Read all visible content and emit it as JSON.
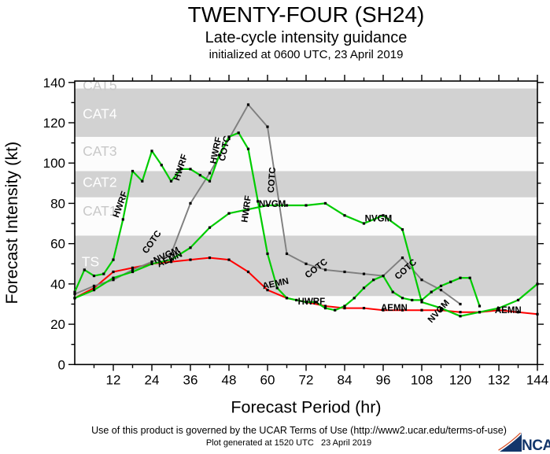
{
  "header": {
    "title": "TWENTY-FOUR (SH24)",
    "subtitle": "Late-cycle intensity guidance",
    "init_line": "initialized at 0600 UTC, 23 April 2019"
  },
  "chart_data": {
    "type": "line",
    "title": "TWENTY-FOUR (SH24)",
    "subtitle": "Late-cycle intensity guidance",
    "xlabel": "Forecast Period (hr)",
    "ylabel": "Forecast Intensity (kt)",
    "xlim": [
      0,
      144
    ],
    "ylim": [
      0,
      140.7
    ],
    "grid": false,
    "xticks_major": [
      12,
      24,
      36,
      48,
      60,
      72,
      84,
      96,
      108,
      120,
      132,
      144
    ],
    "xtick_minor_step": 6,
    "yticks_major": [
      0,
      20,
      40,
      60,
      80,
      100,
      120,
      140
    ],
    "ytick_minor_step": 10,
    "band_gray": "#d2d2d2",
    "band_white": "#fcfcfc",
    "bands": [
      {
        "label": "",
        "from": 0,
        "to": 34,
        "fill": "#fcfcfc",
        "label_color": "",
        "label_t": 0,
        "label_kt": 0
      },
      {
        "label": "TS",
        "from": 34,
        "to": 64,
        "fill": "#d2d2d2",
        "label_color": "#ffffff",
        "label_t": 4.9,
        "label_kt": 51
      },
      {
        "label": "CAT1",
        "from": 64,
        "to": 83,
        "fill": "#fcfcfc",
        "label_color": "#c8c8c8",
        "label_t": 7.8,
        "label_kt": 76.3
      },
      {
        "label": "CAT2",
        "from": 83,
        "to": 96,
        "fill": "#d2d2d2",
        "label_color": "#ffffff",
        "label_t": 7.8,
        "label_kt": 90.5
      },
      {
        "label": "CAT3",
        "from": 96,
        "to": 113,
        "fill": "#fcfcfc",
        "label_color": "#c8c8c8",
        "label_t": 7.8,
        "label_kt": 106
      },
      {
        "label": "CAT4",
        "from": 113,
        "to": 137,
        "fill": "#d2d2d2",
        "label_color": "#ffffff",
        "label_t": 7.8,
        "label_kt": 124.5
      },
      {
        "label": "CAT5",
        "from": 137,
        "to": 140.7,
        "fill": "#fcfcfc",
        "label_color": "#c8c8c8",
        "label_t": 7.8,
        "label_kt": 138.6
      }
    ],
    "marker": {
      "color": "#000000",
      "size": 3.2
    },
    "series": [
      {
        "name": "AEMN",
        "color": "#ff0000",
        "width": 2.0,
        "points": [
          [
            0,
            33
          ],
          [
            6,
            38
          ],
          [
            12,
            46
          ],
          [
            18,
            48
          ],
          [
            24,
            50
          ],
          [
            30,
            51
          ],
          [
            36,
            52
          ],
          [
            42,
            53
          ],
          [
            48,
            52
          ],
          [
            54,
            46
          ],
          [
            60,
            37
          ],
          [
            66,
            33
          ],
          [
            72,
            31
          ],
          [
            78,
            29
          ],
          [
            84,
            28
          ],
          [
            90,
            28
          ],
          [
            96,
            27
          ],
          [
            102,
            27
          ],
          [
            108,
            27
          ],
          [
            114,
            27
          ],
          [
            120,
            26
          ],
          [
            126,
            26
          ],
          [
            132,
            27
          ],
          [
            138,
            26
          ],
          [
            144,
            25
          ]
        ]
      },
      {
        "name": "COTC",
        "color": "#7f7f7f",
        "width": 1.9,
        "points": [
          [
            0,
            35
          ],
          [
            6,
            39
          ],
          [
            12,
            42
          ],
          [
            18,
            47
          ],
          [
            24,
            51
          ],
          [
            30,
            55
          ],
          [
            36,
            80
          ],
          [
            42,
            95
          ],
          [
            48,
            112
          ],
          [
            54,
            129
          ],
          [
            60,
            118
          ],
          [
            66,
            55
          ],
          [
            72,
            50
          ],
          [
            78,
            47
          ],
          [
            84,
            46
          ],
          [
            90,
            45
          ],
          [
            96,
            44
          ],
          [
            102,
            53
          ],
          [
            108,
            42
          ],
          [
            114,
            37
          ],
          [
            120,
            30
          ]
        ]
      },
      {
        "name": "NVGM",
        "color": "#00cc00",
        "width": 2.2,
        "points": [
          [
            0,
            33
          ],
          [
            6,
            37
          ],
          [
            12,
            43
          ],
          [
            18,
            46
          ],
          [
            24,
            50
          ],
          [
            30,
            52
          ],
          [
            36,
            58
          ],
          [
            42,
            68
          ],
          [
            48,
            75
          ],
          [
            54,
            77
          ],
          [
            60,
            79
          ],
          [
            66,
            79
          ],
          [
            72,
            79
          ],
          [
            78,
            80
          ],
          [
            84,
            74
          ],
          [
            90,
            70
          ],
          [
            96,
            74
          ],
          [
            102,
            67
          ],
          [
            108,
            31
          ],
          [
            114,
            28
          ],
          [
            120,
            24
          ],
          [
            126,
            26
          ],
          [
            132,
            28
          ],
          [
            138,
            32
          ],
          [
            144,
            40
          ]
        ]
      },
      {
        "name": "HWRF",
        "color": "#00cc00",
        "width": 2.2,
        "points": [
          [
            0,
            36
          ],
          [
            3,
            47
          ],
          [
            6,
            44
          ],
          [
            9,
            45
          ],
          [
            12,
            52
          ],
          [
            15,
            72
          ],
          [
            18,
            96
          ],
          [
            21,
            91
          ],
          [
            24,
            106
          ],
          [
            27,
            99
          ],
          [
            30,
            91
          ],
          [
            33,
            97
          ],
          [
            36,
            97
          ],
          [
            39,
            94
          ],
          [
            42,
            91
          ],
          [
            45,
            104
          ],
          [
            48,
            113
          ],
          [
            51,
            115
          ],
          [
            54,
            107
          ],
          [
            57,
            81
          ],
          [
            60,
            55
          ],
          [
            63,
            38
          ],
          [
            66,
            33
          ],
          [
            69,
            32
          ],
          [
            72,
            31
          ],
          [
            75,
            31
          ],
          [
            78,
            28
          ],
          [
            81,
            27
          ],
          [
            84,
            29
          ],
          [
            87,
            33
          ],
          [
            90,
            38
          ],
          [
            93,
            42
          ],
          [
            96,
            44
          ],
          [
            99,
            36
          ],
          [
            102,
            33
          ],
          [
            105,
            32
          ],
          [
            108,
            32
          ],
          [
            111,
            36
          ],
          [
            114,
            39
          ],
          [
            117,
            41
          ],
          [
            120,
            43
          ],
          [
            123,
            43
          ],
          [
            126,
            29
          ]
        ]
      }
    ],
    "inline_labels": [
      {
        "text": "HWRF",
        "t": 15,
        "kt": 79,
        "rot": -70
      },
      {
        "text": "COTC",
        "t": 24.7,
        "kt": 60,
        "rot": -55
      },
      {
        "text": "NVGM",
        "t": 28.9,
        "kt": 53,
        "rot": -25
      },
      {
        "text": "AEMN",
        "t": 29.9,
        "kt": 51,
        "rot": -25
      },
      {
        "text": "HWRF",
        "t": 33.8,
        "kt": 97.4,
        "rot": -72
      },
      {
        "text": "HWRF",
        "t": 44.8,
        "kt": 106,
        "rot": -78
      },
      {
        "text": "COTC",
        "t": 47.5,
        "kt": 107,
        "rot": -78
      },
      {
        "text": "HWRF",
        "t": 54.3,
        "kt": 77,
        "rot": -82
      },
      {
        "text": "COTC",
        "t": 62.2,
        "kt": 91.5,
        "rot": -86
      },
      {
        "text": "NVGM",
        "t": 61.5,
        "kt": 78.2,
        "rot": 0
      },
      {
        "text": "AEMN",
        "t": 62.7,
        "kt": 38.8,
        "rot": -12
      },
      {
        "text": "HWRF",
        "t": 73.7,
        "kt": 29.8,
        "rot": 0
      },
      {
        "text": "COTC",
        "t": 75.7,
        "kt": 46.6,
        "rot": -38
      },
      {
        "text": "NVGM",
        "t": 94.5,
        "kt": 71,
        "rot": 0
      },
      {
        "text": "AEMN",
        "t": 99.4,
        "kt": 26.7,
        "rot": 0
      },
      {
        "text": "COTC",
        "t": 103.6,
        "kt": 46.2,
        "rot": -42
      },
      {
        "text": "NVGM",
        "t": 113.9,
        "kt": 25.5,
        "rot": -48
      },
      {
        "text": "AEMN",
        "t": 134.9,
        "kt": 25.5,
        "rot": 0
      }
    ]
  },
  "footer": {
    "terms": "Use of this product is governed by the UCAR Terms of Use (http://www2.ucar.edu/terms-of-use)",
    "generated": "Plot generated at 1520 UTC   23 April 2019"
  },
  "logo": {
    "text": "NCAR",
    "color": "#13366b",
    "arc_color": "#d9542b"
  }
}
